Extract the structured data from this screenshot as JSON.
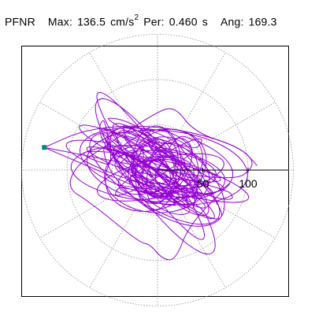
{
  "header": {
    "station": "PFNR",
    "max_label": "Max:",
    "max_value": "136.5",
    "max_unit": "cm/s",
    "max_unit_exp": "2",
    "per_label": "Per:",
    "per_value": "0.460",
    "per_unit": "s",
    "ang_label": "Ang:",
    "ang_value": "169.3"
  },
  "colors": {
    "trace": "#9400d3",
    "start_marker": "#008b74",
    "grid": "#8c8c8c",
    "axis": "#000000",
    "frame": "#000000"
  },
  "chart_data": {
    "type": "scatter",
    "description_type": "horizontal particle-motion orbit (acceleration) on polar grid",
    "units": "cm/s2",
    "polar_rings": [
      50,
      100,
      150
    ],
    "radial_tick_labels": [
      "50",
      "100"
    ],
    "radial_spokes_deg": [
      0,
      30,
      60,
      90,
      120,
      150,
      180,
      210,
      240,
      270,
      300,
      330
    ],
    "max_amplitude": 136.5,
    "angle_deg": 169.3,
    "period_s": 0.46,
    "start_point": [
      -125,
      25
    ],
    "envelope_points": [
      [
        -125,
        25
      ],
      [
        -80,
        45
      ],
      [
        -20,
        50
      ],
      [
        40,
        42
      ],
      [
        92,
        25
      ],
      [
        110,
        5
      ],
      [
        80,
        -15
      ],
      [
        35,
        -60
      ],
      [
        20,
        -100
      ],
      [
        5,
        -98
      ],
      [
        -8,
        -82
      ],
      [
        -20,
        -80
      ],
      [
        -75,
        -35
      ],
      [
        -100,
        -20
      ],
      [
        -90,
        5
      ],
      [
        -60,
        25
      ],
      [
        0,
        65
      ],
      [
        20,
        70
      ]
    ]
  }
}
